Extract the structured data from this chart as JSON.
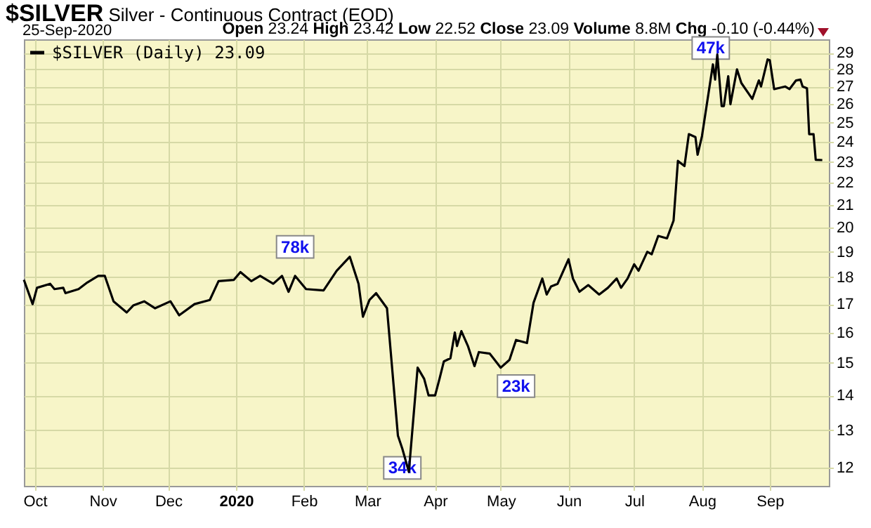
{
  "chart_data": {
    "type": "line",
    "title": "$SILVER Silver - Continuous Contract (EOD)",
    "subtitle": "Open 23.24 High 23.42 Low 22.52 Close 23.09 Volume 8.8M Chg -0.10 (-0.44%)",
    "x": [
      "2019-09-26",
      "2019-09-30",
      "2019-10-02",
      "2019-10-08",
      "2019-10-10",
      "2019-10-14",
      "2019-10-15",
      "2019-10-21",
      "2019-10-25",
      "2019-10-30",
      "2019-11-02",
      "2019-11-06",
      "2019-11-12",
      "2019-11-15",
      "2019-11-20",
      "2019-11-25",
      "2019-12-02",
      "2019-12-06",
      "2019-12-13",
      "2019-12-20",
      "2019-12-24",
      "2019-12-31",
      "2020-01-03",
      "2020-01-08",
      "2020-01-12",
      "2020-01-18",
      "2020-01-22",
      "2020-01-25",
      "2020-01-28",
      "2020-02-02",
      "2020-02-10",
      "2020-02-16",
      "2020-02-22",
      "2020-02-26",
      "2020-02-28",
      "2020-03-02",
      "2020-03-05",
      "2020-03-10",
      "2020-03-15",
      "2020-03-17",
      "2020-03-20",
      "2020-03-24",
      "2020-03-27",
      "2020-03-29",
      "2020-04-01",
      "2020-04-03",
      "2020-04-05",
      "2020-04-08",
      "2020-04-10",
      "2020-04-11",
      "2020-04-13",
      "2020-04-16",
      "2020-04-19",
      "2020-04-21",
      "2020-04-26",
      "2020-05-01",
      "2020-05-05",
      "2020-05-08",
      "2020-05-13",
      "2020-05-16",
      "2020-05-20",
      "2020-05-22",
      "2020-05-24",
      "2020-05-27",
      "2020-06-01",
      "2020-06-03",
      "2020-06-06",
      "2020-06-10",
      "2020-06-15",
      "2020-06-19",
      "2020-06-23",
      "2020-06-25",
      "2020-06-28",
      "2020-07-01",
      "2020-07-03",
      "2020-07-07",
      "2020-07-09",
      "2020-07-12",
      "2020-07-16",
      "2020-07-19",
      "2020-07-21",
      "2020-07-24",
      "2020-07-26",
      "2020-07-29",
      "2020-07-30",
      "2020-08-01",
      "2020-08-06",
      "2020-08-07",
      "2020-08-08",
      "2020-08-10",
      "2020-08-11",
      "2020-08-13",
      "2020-08-14",
      "2020-08-17",
      "2020-08-19",
      "2020-08-24",
      "2020-08-27",
      "2020-08-28",
      "2020-08-31",
      "2020-09-01",
      "2020-09-03",
      "2020-09-08",
      "2020-09-10",
      "2020-09-13",
      "2020-09-15",
      "2020-09-16",
      "2020-09-18",
      "2020-09-19",
      "2020-09-21",
      "2020-09-22",
      "2020-09-25"
    ],
    "series": [
      {
        "name": "$SILVER (Daily) 23.09",
        "color": "#000000",
        "values": [
          17.9,
          17.0,
          17.6,
          17.75,
          17.55,
          17.6,
          17.4,
          17.55,
          17.8,
          18.05,
          18.05,
          17.1,
          16.7,
          16.95,
          17.1,
          16.85,
          17.1,
          16.6,
          17.0,
          17.15,
          17.85,
          17.9,
          18.2,
          17.85,
          18.05,
          17.75,
          18.05,
          17.45,
          18.05,
          17.55,
          17.5,
          18.25,
          18.8,
          17.75,
          16.55,
          17.15,
          17.4,
          16.85,
          12.85,
          12.5,
          11.9,
          14.85,
          14.5,
          14.0,
          14.0,
          14.5,
          15.05,
          15.15,
          16.0,
          15.55,
          16.05,
          15.55,
          14.9,
          15.35,
          15.3,
          14.85,
          15.1,
          15.75,
          15.65,
          17.05,
          17.95,
          17.35,
          17.65,
          17.75,
          18.7,
          17.95,
          17.45,
          17.7,
          17.35,
          17.6,
          17.95,
          17.6,
          17.95,
          18.5,
          18.25,
          19.0,
          18.9,
          19.65,
          19.55,
          20.3,
          23.05,
          22.8,
          24.4,
          24.25,
          23.35,
          24.3,
          28.3,
          27.4,
          28.9,
          25.9,
          25.9,
          27.6,
          26.0,
          28.0,
          27.2,
          26.3,
          27.35,
          27.0,
          28.6,
          28.55,
          26.85,
          27.0,
          26.85,
          27.35,
          27.4,
          27.0,
          26.9,
          24.4,
          24.4,
          23.1,
          23.09
        ]
      }
    ],
    "xlim": [
      "2019-09-26",
      "2020-09-28"
    ],
    "xticks": [
      {
        "value": "2019-10-01",
        "label": "Oct"
      },
      {
        "value": "2019-11-01",
        "label": "Nov"
      },
      {
        "value": "2019-12-01",
        "label": "Dec"
      },
      {
        "value": "2020-01-01",
        "label": "2020"
      },
      {
        "value": "2020-02-01",
        "label": "Feb"
      },
      {
        "value": "2020-03-01",
        "label": "Mar"
      },
      {
        "value": "2020-04-01",
        "label": "Apr"
      },
      {
        "value": "2020-05-01",
        "label": "May"
      },
      {
        "value": "2020-06-01",
        "label": "Jun"
      },
      {
        "value": "2020-07-01",
        "label": "Jul"
      },
      {
        "value": "2020-08-01",
        "label": "Aug"
      },
      {
        "value": "2020-09-01",
        "label": "Sep"
      }
    ],
    "ylim": [
      11.55,
      29.85
    ],
    "yticks": [
      12,
      13,
      14,
      15,
      16,
      17,
      18,
      19,
      20,
      21,
      22,
      23,
      24,
      25,
      26,
      27,
      28,
      29
    ],
    "log": true,
    "grid": true,
    "legend": "top left",
    "marker": "none",
    "line_style": "solid",
    "annotations": [
      "25-Sep-2020",
      {
        "text": "78k",
        "x": "2020-01-28",
        "y": 19.2
      },
      {
        "text": "34k",
        "x": "2020-03-17",
        "y": 12.0
      },
      {
        "text": "23k",
        "x": "2020-05-08",
        "y": 14.28
      },
      {
        "text": "47k",
        "x": "2020-08-05",
        "y": 29.3
      }
    ]
  }
}
